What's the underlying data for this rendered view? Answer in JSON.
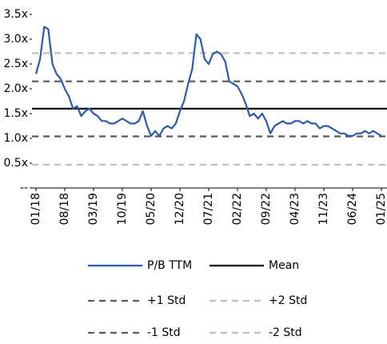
{
  "chart_data": {
    "type": "line",
    "x": [
      "2018-01",
      "2018-02",
      "2018-03",
      "2018-04",
      "2018-05",
      "2018-06",
      "2018-07",
      "2018-08",
      "2018-09",
      "2018-10",
      "2018-11",
      "2018-12",
      "2019-01",
      "2019-02",
      "2019-03",
      "2019-04",
      "2019-05",
      "2019-06",
      "2019-07",
      "2019-08",
      "2019-09",
      "2019-10",
      "2019-11",
      "2019-12",
      "2020-01",
      "2020-02",
      "2020-03",
      "2020-04",
      "2020-05",
      "2020-06",
      "2020-07",
      "2020-08",
      "2020-09",
      "2020-10",
      "2020-11",
      "2020-12",
      "2021-01",
      "2021-02",
      "2021-03",
      "2021-04",
      "2021-05",
      "2021-06",
      "2021-07",
      "2021-08",
      "2021-09",
      "2021-10",
      "2021-11",
      "2021-12",
      "2022-01",
      "2022-02",
      "2022-03",
      "2022-04",
      "2022-05",
      "2022-06",
      "2022-07",
      "2022-08",
      "2022-09",
      "2022-10",
      "2022-11",
      "2022-12",
      "2023-01",
      "2023-02",
      "2023-03",
      "2023-04",
      "2023-05",
      "2023-06",
      "2023-07",
      "2023-08",
      "2023-09",
      "2023-10",
      "2023-11",
      "2023-12",
      "2024-01",
      "2024-02",
      "2024-03",
      "2024-04",
      "2024-05",
      "2024-06",
      "2024-07",
      "2024-08",
      "2024-09",
      "2024-10",
      "2024-11",
      "2024-12",
      "2025-01"
    ],
    "series": [
      {
        "name": "P/B TTM",
        "color": "#2e5aac",
        "values": [
          2.3,
          2.6,
          3.25,
          3.2,
          2.5,
          2.3,
          2.2,
          2.0,
          1.85,
          1.6,
          1.65,
          1.45,
          1.55,
          1.6,
          1.5,
          1.45,
          1.35,
          1.35,
          1.3,
          1.3,
          1.35,
          1.4,
          1.35,
          1.3,
          1.3,
          1.35,
          1.55,
          1.25,
          1.05,
          1.15,
          1.05,
          1.2,
          1.25,
          1.2,
          1.3,
          1.55,
          1.75,
          2.1,
          2.4,
          3.1,
          3.0,
          2.6,
          2.5,
          2.7,
          2.75,
          2.7,
          2.55,
          2.15,
          2.1,
          2.05,
          1.9,
          1.7,
          1.45,
          1.5,
          1.4,
          1.5,
          1.35,
          1.1,
          1.25,
          1.3,
          1.35,
          1.3,
          1.3,
          1.35,
          1.35,
          1.3,
          1.35,
          1.3,
          1.3,
          1.2,
          1.25,
          1.25,
          1.2,
          1.15,
          1.1,
          1.1,
          1.05,
          1.05,
          1.1,
          1.1,
          1.15,
          1.1,
          1.15,
          1.1,
          1.05
        ]
      }
    ],
    "reference_lines": [
      {
        "name": "Mean",
        "value": 1.6,
        "color": "#000000",
        "dashed": false
      },
      {
        "name": "+1 Std",
        "value": 2.15,
        "color": "#595959",
        "dashed": true
      },
      {
        "name": "+2 Std",
        "value": 2.72,
        "color": "#bfbfbf",
        "dashed": true
      },
      {
        "name": "-1 Std",
        "value": 1.04,
        "color": "#595959",
        "dashed": true
      },
      {
        "name": "-2 Std",
        "value": 0.47,
        "color": "#bfbfbf",
        "dashed": true
      }
    ],
    "ylim": [
      0,
      3.5
    ],
    "yticks": [
      {
        "value": 0,
        "label": "--"
      },
      {
        "value": 0.5,
        "label": "0.5x"
      },
      {
        "value": 1,
        "label": "1.0x"
      },
      {
        "value": 1.5,
        "label": "1.5x"
      },
      {
        "value": 2,
        "label": "2.0x"
      },
      {
        "value": 2.5,
        "label": "2.5x"
      },
      {
        "value": 3,
        "label": "3.0x"
      },
      {
        "value": 3.5,
        "label": "3.5x"
      }
    ],
    "xlim": [
      "2018-01",
      "2025-01"
    ],
    "xticks": [
      {
        "value": "2018-01",
        "label": "01/18"
      },
      {
        "value": "2018-08",
        "label": "08/18"
      },
      {
        "value": "2019-03",
        "label": "03/19"
      },
      {
        "value": "2019-10",
        "label": "10/19"
      },
      {
        "value": "2020-05",
        "label": "05/20"
      },
      {
        "value": "2020-12",
        "label": "12/20"
      },
      {
        "value": "2021-07",
        "label": "07/21"
      },
      {
        "value": "2022-02",
        "label": "02/22"
      },
      {
        "value": "2022-09",
        "label": "09/22"
      },
      {
        "value": "2023-04",
        "label": "04/23"
      },
      {
        "value": "2023-11",
        "label": "11/23"
      },
      {
        "value": "2024-06",
        "label": "06/24"
      },
      {
        "value": "2025-01",
        "label": "01/25"
      }
    ],
    "legend": "bottom"
  }
}
